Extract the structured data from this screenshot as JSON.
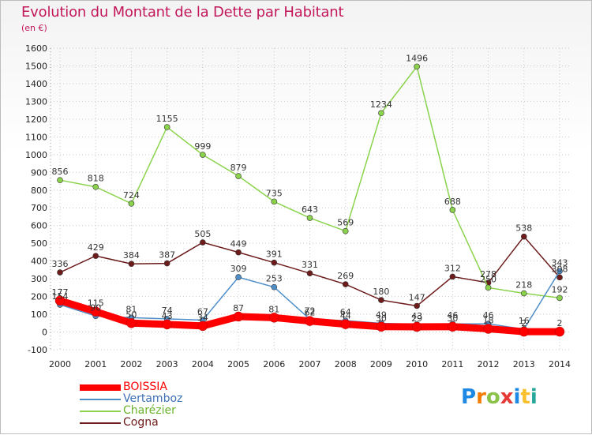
{
  "chart_data": {
    "type": "line",
    "title": "Evolution du Montant de la Dette par Habitant",
    "subtitle": "(en €)",
    "xlabel": "",
    "ylabel": "",
    "ylim": [
      -100,
      1600
    ],
    "y_ticks": [
      "-100",
      "0",
      "100",
      "200",
      "300",
      "400",
      "500",
      "600",
      "700",
      "800",
      "900",
      "1000",
      "1100",
      "1200",
      "1300",
      "1400",
      "1500",
      "1600"
    ],
    "categories": [
      "2000",
      "2001",
      "2002",
      "2003",
      "2004",
      "2005",
      "2006",
      "2007",
      "2008",
      "2009",
      "2010",
      "2011",
      "2012",
      "2013",
      "2014"
    ],
    "grid": true,
    "legend_position": "bottom-left",
    "series": [
      {
        "name": "Cogna",
        "color": "#6d1b1b",
        "values": [
          336,
          429,
          384,
          387,
          505,
          449,
          391,
          331,
          269,
          180,
          147,
          312,
          278,
          538,
          308
        ],
        "labels": [
          "336",
          "429",
          "384",
          "387",
          "505",
          "449",
          "391",
          "331",
          "269",
          "180",
          "147",
          "312",
          "278",
          "538",
          "308"
        ]
      },
      {
        "name": "Charézier",
        "color": "#8bd34c",
        "values": [
          856,
          818,
          724,
          1155,
          999,
          879,
          735,
          643,
          569,
          1234,
          1496,
          688,
          250,
          218,
          192
        ],
        "labels": [
          "856",
          "818",
          "724",
          "1155",
          "999",
          "879",
          "735",
          "643",
          "569",
          "1234",
          "1496",
          "688",
          "250",
          "218",
          "192"
        ]
      },
      {
        "name": "Vertamboz",
        "color": "#4f8fc9",
        "values": [
          154,
          90,
          81,
          74,
          67,
          309,
          253,
          72,
          64,
          49,
          43,
          46,
          46,
          16,
          343
        ],
        "labels": [
          "154",
          "90",
          "81",
          "74",
          "67",
          "309",
          "253",
          "72",
          "64",
          "49",
          "43",
          "46",
          "46",
          "16",
          "343"
        ]
      },
      {
        "name": "BOISSIA",
        "color": "#ff0000",
        "values": [
          177,
          115,
          50,
          43,
          34,
          87,
          81,
          62,
          44,
          30,
          29,
          30,
          18,
          2,
          2
        ],
        "labels": [
          "177",
          "115",
          "50",
          "43",
          "34",
          "87",
          "81",
          "62",
          "44",
          "30",
          "29",
          "30",
          "18",
          "2",
          "2"
        ]
      }
    ]
  },
  "legend": [
    {
      "label": "BOISSIA",
      "color": "#ff0000"
    },
    {
      "label": "Vertamboz",
      "color": "#3d6fb5"
    },
    {
      "label": "Charézier",
      "color": "#6ab42f"
    },
    {
      "label": "Cogna",
      "color": "#6d1b1b"
    }
  ],
  "logo": {
    "letters": [
      "P",
      "r",
      "o",
      "x",
      "i",
      "t",
      "i"
    ]
  }
}
